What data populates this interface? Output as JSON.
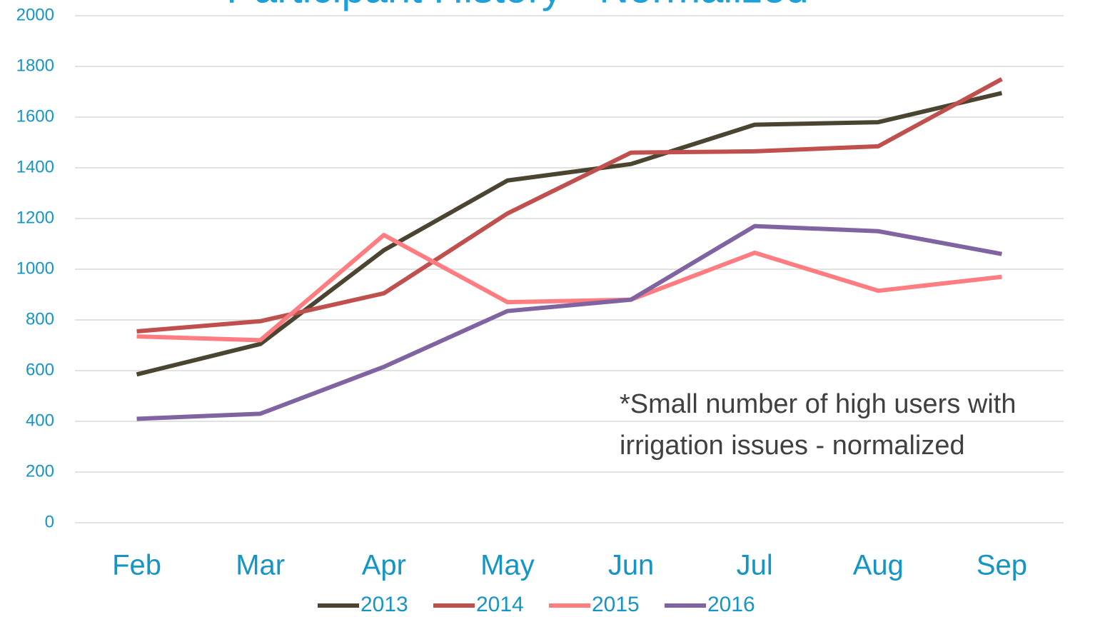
{
  "chart_data": {
    "type": "line",
    "title": "Participant History - Normalized",
    "categories": [
      "Feb",
      "Mar",
      "Apr",
      "May",
      "Jun",
      "Jul",
      "Aug",
      "Sep"
    ],
    "series": [
      {
        "name": "2013",
        "color": "#4a4430",
        "values": [
          585,
          705,
          1075,
          1350,
          1415,
          1570,
          1580,
          1695
        ]
      },
      {
        "name": "2014",
        "color": "#c0504d",
        "values": [
          755,
          795,
          905,
          1220,
          1460,
          1465,
          1485,
          1750
        ]
      },
      {
        "name": "2015",
        "color": "#ff7c80",
        "values": [
          735,
          720,
          1135,
          870,
          880,
          1065,
          915,
          970
        ]
      },
      {
        "name": "2016",
        "color": "#8064a2",
        "values": [
          410,
          430,
          615,
          835,
          880,
          1170,
          1150,
          1060
        ]
      }
    ],
    "ylim": [
      0,
      2000
    ],
    "yticks": [
      0,
      200,
      400,
      600,
      800,
      1000,
      1200,
      1400,
      1600,
      1800,
      2000
    ],
    "grid": true,
    "legend": "bottom",
    "annotation": [
      "*Small number of high users with",
      "irrigation issues - normalized"
    ]
  }
}
